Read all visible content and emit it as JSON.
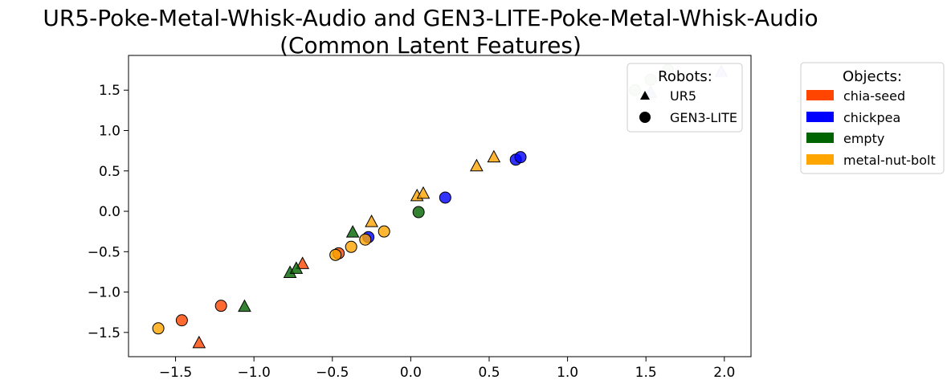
{
  "chart_data": {
    "type": "scatter",
    "title": "UR5-Poke-Metal-Whisk-Audio and GEN3-LITE-Poke-Metal-Whisk-Audio\n(Common Latent Features)",
    "xlabel": "",
    "ylabel": "",
    "xlim": [
      -1.8,
      2.17
    ],
    "ylim": [
      -1.8,
      1.93
    ],
    "xticks": [
      -1.5,
      -1.0,
      -0.5,
      0.0,
      0.5,
      1.0,
      1.5,
      2.0
    ],
    "yticks": [
      -1.5,
      -1.0,
      -0.5,
      0.0,
      0.5,
      1.0,
      1.5
    ],
    "xtick_labels": [
      "−1.5",
      "−1.0",
      "−0.5",
      "0.0",
      "0.5",
      "1.0",
      "1.5",
      "2.0"
    ],
    "ytick_labels": [
      "−1.5",
      "−1.0",
      "−0.5",
      "0.0",
      "0.5",
      "1.0",
      "1.5"
    ],
    "grid": false,
    "robots_legend": {
      "title": "Robots:",
      "placement": "upper-right-inside",
      "entries": [
        {
          "label": "UR5",
          "marker": "triangle"
        },
        {
          "label": "GEN3-LITE",
          "marker": "circle"
        }
      ]
    },
    "objects_legend": {
      "title": "Objects:",
      "placement": "outside-right",
      "entries": [
        {
          "label": "chia-seed",
          "color": "#ff4500"
        },
        {
          "label": "chickpea",
          "color": "#0000ff"
        },
        {
          "label": "empty",
          "color": "#006400"
        },
        {
          "label": "metal-nut-bolt",
          "color": "#ffa500"
        }
      ]
    },
    "series": [
      {
        "robot": "UR5",
        "object": "chia-seed",
        "marker": "triangle",
        "color": "#ff4500",
        "x": [
          -1.35,
          -0.69
        ],
        "y": [
          -1.63,
          -0.65
        ]
      },
      {
        "robot": "UR5",
        "object": "chickpea",
        "marker": "triangle",
        "color": "#0000ff",
        "x": [
          1.53,
          1.98
        ],
        "y": [
          1.47,
          1.73
        ]
      },
      {
        "robot": "UR5",
        "object": "empty",
        "marker": "triangle",
        "color": "#006400",
        "x": [
          -1.06,
          -0.77,
          -0.73,
          -0.37
        ],
        "y": [
          -1.18,
          -0.76,
          -0.71,
          -0.26
        ]
      },
      {
        "robot": "UR5",
        "object": "metal-nut-bolt",
        "marker": "triangle",
        "color": "#ffa500",
        "x": [
          -0.25,
          0.04,
          0.08,
          0.42,
          0.53
        ],
        "y": [
          -0.13,
          0.19,
          0.22,
          0.56,
          0.67
        ]
      },
      {
        "robot": "GEN3-LITE",
        "object": "chia-seed",
        "marker": "circle",
        "color": "#ff4500",
        "x": [
          -1.46,
          -1.21,
          -0.46
        ],
        "y": [
          -1.35,
          -1.17,
          -0.52
        ]
      },
      {
        "robot": "GEN3-LITE",
        "object": "chickpea",
        "marker": "circle",
        "color": "#0000ff",
        "x": [
          -0.27,
          0.22,
          0.67,
          0.7
        ],
        "y": [
          -0.32,
          0.17,
          0.64,
          0.67
        ]
      },
      {
        "robot": "GEN3-LITE",
        "object": "empty",
        "marker": "circle",
        "color": "#006400",
        "x": [
          0.05,
          1.43,
          1.53,
          1.64
        ],
        "y": [
          -0.01,
          1.5,
          1.63,
          1.75
        ]
      },
      {
        "robot": "GEN3-LITE",
        "object": "metal-nut-bolt",
        "marker": "circle",
        "color": "#ffa500",
        "x": [
          -1.61,
          -0.48,
          -0.38,
          -0.29,
          -0.17
        ],
        "y": [
          -1.45,
          -0.54,
          -0.44,
          -0.35,
          -0.25
        ]
      }
    ]
  }
}
